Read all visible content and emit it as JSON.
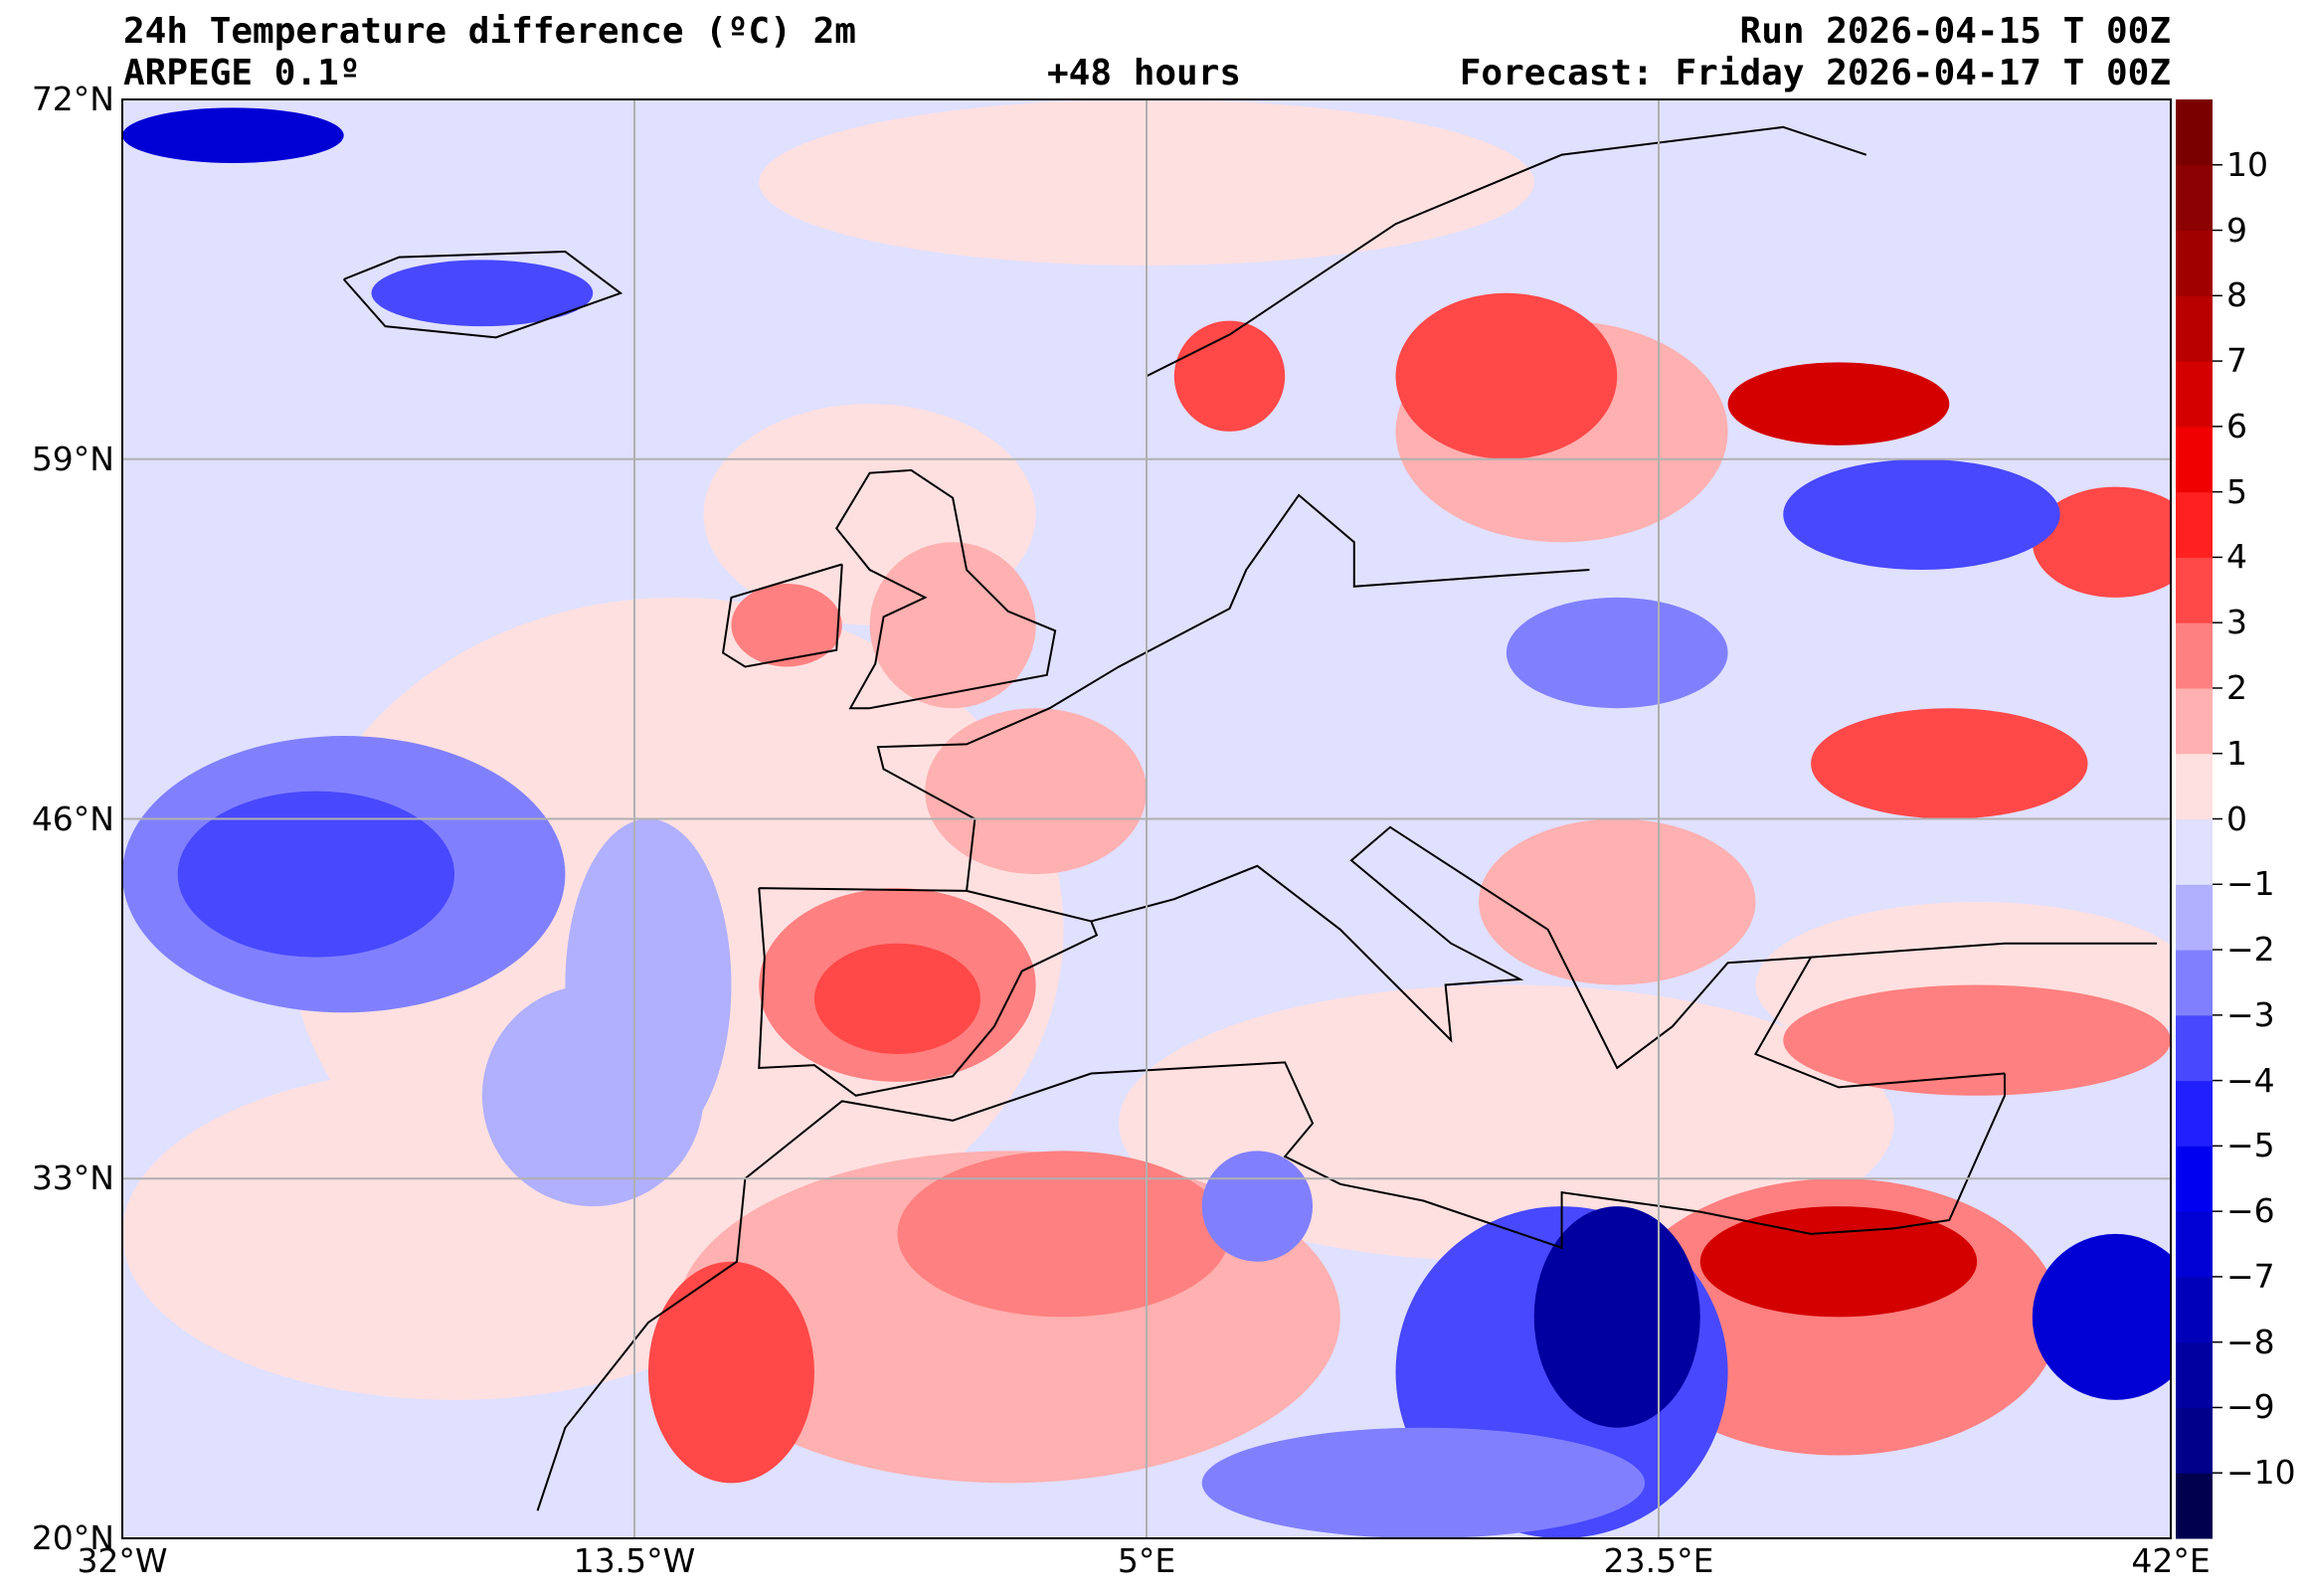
{
  "header": {
    "title": "24h Temperature difference (ºC) 2m",
    "model": "ARPEGE 0.1º",
    "lead_time": "+48 hours",
    "run": "Run 2026-04-15 T 00Z",
    "forecast": "Forecast: Friday 2026-04-17 T 00Z"
  },
  "axes": {
    "lat_labels": [
      "72°N",
      "59°N",
      "46°N",
      "33°N",
      "20°N"
    ],
    "lat_values": [
      72,
      59,
      46,
      33,
      20
    ],
    "lon_labels": [
      "32°W",
      "13.5°W",
      "5°E",
      "23.5°E",
      "42°E"
    ],
    "lon_values": [
      -32,
      -13.5,
      5,
      23.5,
      42
    ]
  },
  "colorbar": {
    "tick_labels": [
      "10",
      "9",
      "8",
      "7",
      "6",
      "5",
      "4",
      "3",
      "2",
      "1",
      "0",
      "−1",
      "−2",
      "−3",
      "−4",
      "−5",
      "−6",
      "−7",
      "−8",
      "−9",
      "−10"
    ],
    "tick_values": [
      10,
      9,
      8,
      7,
      6,
      5,
      4,
      3,
      2,
      1,
      0,
      -1,
      -2,
      -3,
      -4,
      -5,
      -6,
      -7,
      -8,
      -9,
      -10
    ],
    "range": [
      -11,
      11
    ],
    "colors": [
      "#00004e",
      "#00008b",
      "#0000a0",
      "#0000b8",
      "#0000d4",
      "#0000f0",
      "#2020ff",
      "#4848ff",
      "#8080ff",
      "#b0b0ff",
      "#e0e0ff",
      "#ffe0e0",
      "#ffb0b0",
      "#ff8080",
      "#ff4848",
      "#ff2020",
      "#f00000",
      "#d40000",
      "#b80000",
      "#a00000",
      "#8b0000",
      "#7a0000"
    ]
  }
}
